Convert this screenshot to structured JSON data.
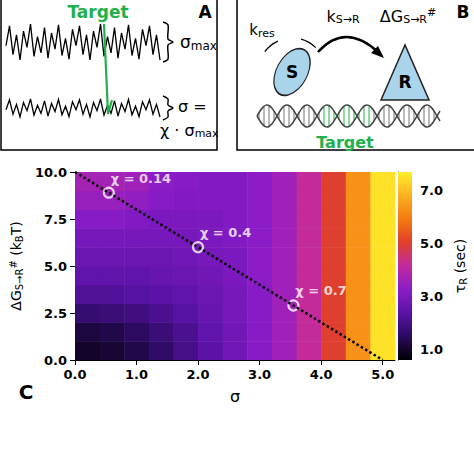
{
  "panels": {
    "A": {
      "label": "A",
      "target": "Target",
      "noise_high": [
        {
          "text": "σ"
        },
        {
          "text": "max",
          "style": "sub"
        }
      ],
      "noise_low_line1": [
        {
          "text": "σ ="
        }
      ],
      "noise_low_line2": [
        {
          "text": "χ · σ"
        },
        {
          "text": "max",
          "style": "sub"
        }
      ]
    },
    "B": {
      "label": "B",
      "source": "S",
      "receptor": "R",
      "target": "Target",
      "k_res": [
        {
          "text": "k"
        },
        {
          "text": "res",
          "style": "sub"
        }
      ],
      "k_transfer": [
        {
          "text": "k"
        },
        {
          "text": "S→R",
          "style": "sub"
        }
      ],
      "barrier": [
        {
          "text": "ΔG"
        },
        {
          "text": "S→R",
          "style": "sub"
        },
        {
          "text": "#",
          "style": "sup"
        }
      ]
    }
  },
  "chart_data": {
    "type": "heatmap",
    "panel_label": "C",
    "x_label": [
      {
        "text": "σ"
      }
    ],
    "y_label": [
      {
        "text": "ΔG"
      },
      {
        "text": "S→R",
        "style": "sub"
      },
      {
        "text": "#",
        "style": "sup"
      },
      {
        "text": " (k"
      },
      {
        "text": "B",
        "style": "sub"
      },
      {
        "text": "T)"
      }
    ],
    "x": [
      0.2,
      0.6,
      1.0,
      1.4,
      1.8,
      2.2,
      2.6,
      3.0,
      3.4,
      3.8,
      4.2,
      4.6,
      5.0
    ],
    "y": [
      0.5,
      1.5,
      2.5,
      3.5,
      4.5,
      5.5,
      6.5,
      7.5,
      8.5,
      9.5
    ],
    "cells": [
      [
        1.0,
        1.1,
        1.3,
        1.6,
        2.0,
        2.4,
        2.8,
        3.2,
        3.6,
        4.2,
        5.0,
        6.3,
        7.5
      ],
      [
        1.2,
        1.3,
        1.5,
        1.8,
        2.1,
        2.5,
        2.8,
        3.2,
        3.6,
        4.2,
        5.0,
        6.3,
        7.5
      ],
      [
        1.7,
        1.8,
        1.9,
        2.1,
        2.3,
        2.6,
        2.9,
        3.2,
        3.6,
        4.2,
        5.0,
        6.3,
        7.5
      ],
      [
        2.2,
        2.2,
        2.3,
        2.4,
        2.5,
        2.7,
        2.9,
        3.2,
        3.6,
        4.2,
        5.0,
        6.3,
        7.5
      ],
      [
        2.5,
        2.5,
        2.5,
        2.6,
        2.7,
        2.8,
        3.0,
        3.3,
        3.6,
        4.2,
        5.0,
        6.3,
        7.5
      ],
      [
        2.7,
        2.7,
        2.7,
        2.7,
        2.8,
        2.9,
        3.0,
        3.3,
        3.6,
        4.2,
        5.0,
        6.3,
        7.5
      ],
      [
        2.9,
        2.9,
        2.9,
        2.9,
        2.9,
        3.0,
        3.1,
        3.3,
        3.6,
        4.2,
        5.0,
        6.3,
        7.5
      ],
      [
        3.2,
        3.2,
        3.1,
        3.0,
        3.0,
        3.0,
        3.1,
        3.3,
        3.6,
        4.2,
        5.0,
        6.3,
        7.5
      ],
      [
        3.5,
        3.5,
        3.4,
        3.2,
        3.1,
        3.1,
        3.1,
        3.3,
        3.6,
        4.2,
        5.0,
        6.3,
        7.5
      ],
      [
        3.7,
        3.7,
        3.6,
        3.3,
        3.2,
        3.1,
        3.1,
        3.3,
        3.6,
        4.2,
        5.0,
        6.3,
        7.5
      ]
    ],
    "xlim": [
      0,
      5.2
    ],
    "xticks": [
      {
        "value": 0,
        "label": "0.0"
      },
      {
        "value": 1,
        "label": "1.0"
      },
      {
        "value": 2,
        "label": "2.0"
      },
      {
        "value": 3,
        "label": "3.0"
      },
      {
        "value": 4,
        "label": "4.0"
      },
      {
        "value": 5,
        "label": "5.0"
      }
    ],
    "ylim": [
      0,
      10
    ],
    "yticks": [
      {
        "value": 0,
        "label": "0.0"
      },
      2.5,
      {
        "value": 5,
        "label": "5.0"
      },
      7.5,
      {
        "value": 10,
        "label": "10.0"
      }
    ],
    "colorbar": {
      "label": [
        {
          "text": "τ"
        },
        {
          "text": "R",
          "style": "sub"
        },
        {
          "text": " (sec)"
        }
      ],
      "range": [
        0.6,
        7.7
      ],
      "ticks": [
        {
          "value": 1,
          "label": "1.0"
        },
        {
          "value": 3,
          "label": "3.0"
        },
        {
          "value": 5,
          "label": "5.0"
        },
        {
          "value": 7,
          "label": "7.0"
        }
      ]
    },
    "line": {
      "x": [
        0,
        5
      ],
      "y": [
        10,
        0
      ],
      "line_style": "dotted",
      "color": "#000000"
    },
    "annotations": {
      "marker": "circle",
      "color": "#ffffff",
      "points": [
        {
          "text": "χ = 0.14",
          "x": 0.55,
          "y": 8.9
        },
        {
          "text": "χ = 0.4",
          "x": 2.0,
          "y": 6.0
        },
        {
          "text": "χ = 0.7",
          "x": 3.55,
          "y": 2.9
        }
      ]
    }
  }
}
